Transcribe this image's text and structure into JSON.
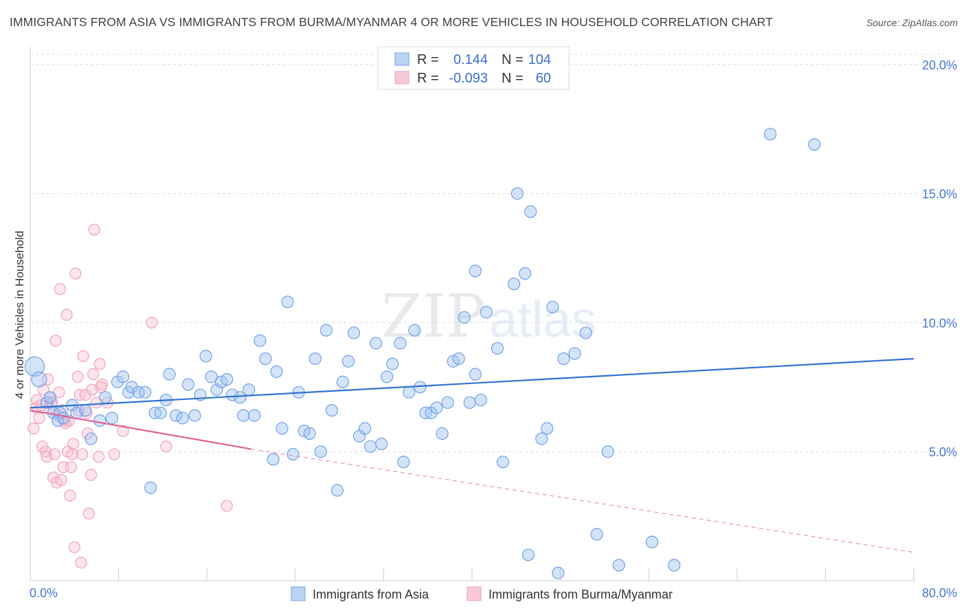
{
  "title": "IMMIGRANTS FROM ASIA VS IMMIGRANTS FROM BURMA/MYANMAR 4 OR MORE VEHICLES IN HOUSEHOLD CORRELATION CHART",
  "source": "Source: ZipAtlas.com",
  "watermark": {
    "zip": "ZIP",
    "atlas": "atlas"
  },
  "colors": {
    "asia": "#6fa0e8",
    "asia_line": "#2f72d0",
    "burma": "#f0a0bb",
    "burma_line": "#e06090",
    "tick_text": "#4477cc"
  },
  "legend_stats": [
    {
      "r_label": "R =",
      "r_value": "0.144",
      "n_label": "N =",
      "n_value": "104"
    },
    {
      "r_label": "R =",
      "r_value": "-0.093",
      "n_label": "N =",
      "n_value": "60"
    }
  ],
  "chart_data": {
    "type": "scatter",
    "title": "IMMIGRANTS FROM ASIA VS IMMIGRANTS FROM BURMA/MYANMAR 4 OR MORE VEHICLES IN HOUSEHOLD CORRELATION CHART",
    "xlabel": "",
    "ylabel": "4 or more Vehicles in Household",
    "xlim": [
      0,
      80
    ],
    "ylim": [
      0,
      20.5
    ],
    "x_tick_labels": [
      "0.0%",
      "80.0%"
    ],
    "y_ticks": [
      {
        "value": 5,
        "label": "5.0%"
      },
      {
        "value": 10,
        "label": "10.0%"
      },
      {
        "value": 15,
        "label": "15.0%"
      },
      {
        "value": 20,
        "label": "20.0%"
      }
    ],
    "legend_placement": "bottom-center",
    "series": [
      {
        "name": "Immigrants from Asia",
        "trend": {
          "x0": 0,
          "y0": 6.7,
          "x1": 80,
          "y1": 8.6
        },
        "points": [
          [
            0.4,
            8.3
          ],
          [
            0.8,
            7.8
          ],
          [
            1.5,
            6.9
          ],
          [
            1.8,
            7.1
          ],
          [
            2.1,
            6.5
          ],
          [
            2.5,
            6.2
          ],
          [
            2.7,
            6.5
          ],
          [
            3.0,
            6.3
          ],
          [
            3.8,
            6.8
          ],
          [
            4.2,
            6.5
          ],
          [
            5.0,
            6.6
          ],
          [
            5.5,
            5.5
          ],
          [
            6.3,
            6.2
          ],
          [
            6.8,
            7.1
          ],
          [
            7.4,
            6.3
          ],
          [
            7.9,
            7.7
          ],
          [
            8.4,
            7.9
          ],
          [
            8.9,
            7.3
          ],
          [
            9.2,
            7.5
          ],
          [
            9.8,
            7.3
          ],
          [
            10.4,
            7.3
          ],
          [
            10.9,
            3.6
          ],
          [
            11.3,
            6.5
          ],
          [
            11.8,
            6.5
          ],
          [
            12.3,
            7.0
          ],
          [
            12.6,
            8.0
          ],
          [
            13.2,
            6.4
          ],
          [
            13.8,
            6.3
          ],
          [
            14.3,
            7.6
          ],
          [
            14.9,
            6.4
          ],
          [
            15.4,
            7.2
          ],
          [
            15.9,
            8.7
          ],
          [
            16.4,
            7.9
          ],
          [
            16.9,
            7.4
          ],
          [
            17.3,
            7.7
          ],
          [
            17.8,
            7.8
          ],
          [
            18.3,
            7.2
          ],
          [
            19.0,
            7.1
          ],
          [
            19.3,
            6.4
          ],
          [
            19.8,
            7.4
          ],
          [
            20.3,
            6.4
          ],
          [
            20.8,
            9.3
          ],
          [
            21.3,
            8.6
          ],
          [
            22.0,
            4.7
          ],
          [
            22.3,
            8.1
          ],
          [
            22.8,
            5.9
          ],
          [
            23.3,
            10.8
          ],
          [
            23.8,
            4.9
          ],
          [
            24.3,
            7.3
          ],
          [
            24.8,
            5.8
          ],
          [
            25.3,
            5.7
          ],
          [
            25.8,
            8.6
          ],
          [
            26.3,
            5.0
          ],
          [
            26.8,
            9.7
          ],
          [
            27.3,
            6.6
          ],
          [
            27.8,
            3.5
          ],
          [
            28.3,
            7.7
          ],
          [
            28.8,
            8.5
          ],
          [
            29.3,
            9.6
          ],
          [
            29.8,
            5.6
          ],
          [
            30.3,
            5.9
          ],
          [
            30.8,
            5.2
          ],
          [
            31.3,
            9.2
          ],
          [
            31.8,
            5.3
          ],
          [
            32.3,
            7.9
          ],
          [
            32.8,
            8.4
          ],
          [
            33.5,
            9.2
          ],
          [
            33.8,
            4.6
          ],
          [
            34.3,
            7.3
          ],
          [
            34.8,
            9.7
          ],
          [
            35.3,
            7.5
          ],
          [
            35.8,
            6.5
          ],
          [
            36.3,
            6.5
          ],
          [
            36.8,
            6.7
          ],
          [
            37.3,
            5.7
          ],
          [
            37.8,
            6.9
          ],
          [
            38.3,
            8.5
          ],
          [
            38.8,
            8.6
          ],
          [
            39.3,
            10.2
          ],
          [
            39.8,
            6.9
          ],
          [
            40.3,
            12.0
          ],
          [
            40.3,
            8.0
          ],
          [
            40.8,
            7.0
          ],
          [
            41.3,
            10.4
          ],
          [
            42.3,
            9.0
          ],
          [
            42.8,
            4.6
          ],
          [
            43.8,
            11.5
          ],
          [
            44.1,
            15.0
          ],
          [
            44.8,
            11.9
          ],
          [
            45.1,
            1.0
          ],
          [
            45.3,
            14.3
          ],
          [
            46.3,
            5.5
          ],
          [
            46.8,
            5.9
          ],
          [
            47.3,
            10.6
          ],
          [
            47.8,
            0.3
          ],
          [
            48.3,
            8.6
          ],
          [
            49.3,
            8.8
          ],
          [
            50.3,
            9.6
          ],
          [
            51.3,
            1.8
          ],
          [
            52.3,
            5.0
          ],
          [
            53.3,
            0.6
          ],
          [
            56.3,
            1.5
          ],
          [
            58.3,
            0.6
          ],
          [
            67.0,
            17.3
          ],
          [
            71.0,
            16.9
          ]
        ]
      },
      {
        "name": "Immigrants from Burma/Myanmar",
        "trend": {
          "x0": 0,
          "y0": 6.6,
          "x1": 20,
          "y1": 5.1,
          "dash_x1": 80,
          "dash_y1": 1.1
        },
        "points": [
          [
            0.3,
            5.9
          ],
          [
            0.5,
            6.7
          ],
          [
            0.6,
            7.0
          ],
          [
            0.8,
            6.3
          ],
          [
            1.0,
            6.8
          ],
          [
            1.1,
            5.2
          ],
          [
            1.2,
            7.4
          ],
          [
            1.4,
            5.0
          ],
          [
            1.5,
            4.8
          ],
          [
            1.6,
            7.8
          ],
          [
            1.7,
            6.7
          ],
          [
            1.8,
            7.1
          ],
          [
            1.9,
            6.9
          ],
          [
            2.0,
            6.9
          ],
          [
            2.1,
            4.0
          ],
          [
            2.2,
            4.9
          ],
          [
            2.3,
            9.3
          ],
          [
            2.4,
            3.8
          ],
          [
            2.5,
            6.4
          ],
          [
            2.6,
            7.3
          ],
          [
            2.7,
            11.3
          ],
          [
            2.8,
            3.9
          ],
          [
            2.9,
            6.6
          ],
          [
            3.0,
            4.4
          ],
          [
            3.1,
            6.2
          ],
          [
            3.2,
            6.1
          ],
          [
            3.3,
            10.3
          ],
          [
            3.4,
            5.0
          ],
          [
            3.5,
            6.2
          ],
          [
            3.6,
            3.3
          ],
          [
            3.7,
            4.4
          ],
          [
            3.8,
            4.9
          ],
          [
            3.9,
            5.3
          ],
          [
            4.0,
            1.3
          ],
          [
            4.1,
            11.9
          ],
          [
            4.3,
            7.9
          ],
          [
            4.4,
            6.6
          ],
          [
            4.5,
            7.2
          ],
          [
            4.6,
            0.7
          ],
          [
            4.7,
            4.9
          ],
          [
            4.8,
            8.7
          ],
          [
            5.0,
            7.2
          ],
          [
            5.1,
            6.5
          ],
          [
            5.2,
            5.7
          ],
          [
            5.3,
            2.6
          ],
          [
            5.5,
            4.1
          ],
          [
            5.6,
            7.4
          ],
          [
            5.7,
            8.0
          ],
          [
            5.8,
            13.6
          ],
          [
            6.0,
            6.9
          ],
          [
            6.2,
            4.8
          ],
          [
            6.3,
            8.4
          ],
          [
            6.4,
            7.5
          ],
          [
            6.5,
            7.6
          ],
          [
            7.0,
            6.9
          ],
          [
            7.6,
            4.9
          ],
          [
            8.4,
            5.8
          ],
          [
            11.0,
            10.0
          ],
          [
            12.3,
            5.2
          ],
          [
            17.8,
            2.9
          ]
        ]
      }
    ]
  }
}
